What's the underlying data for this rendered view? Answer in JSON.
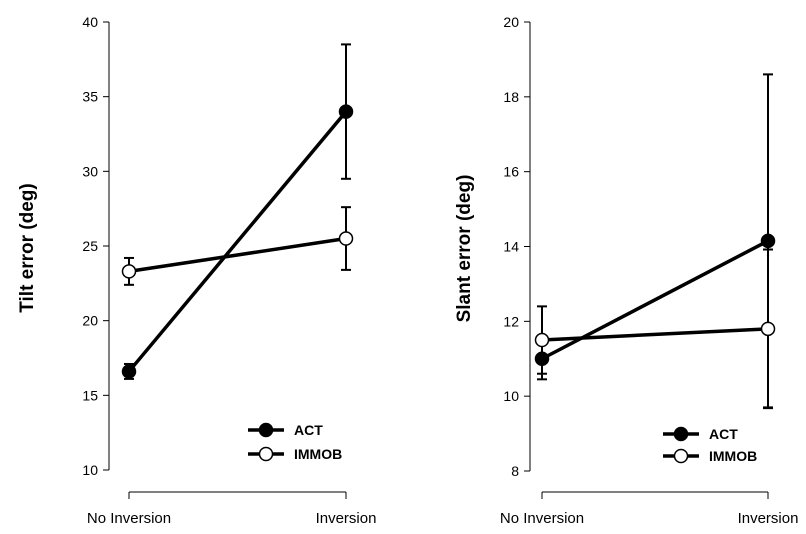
{
  "chart_data": [
    {
      "type": "line",
      "title": "",
      "ylabel": "Tilt error (deg)",
      "xlabel": "",
      "categories": [
        "No Inversion",
        "Inversion"
      ],
      "ylim": [
        10,
        40
      ],
      "yticks": [
        10,
        15,
        20,
        25,
        30,
        35,
        40
      ],
      "legend": "bottom-right",
      "grid": false,
      "series": [
        {
          "name": "ACT",
          "marker": "filled-circle",
          "color": "#000000",
          "values": [
            16.6,
            34.0
          ],
          "error": [
            0.5,
            4.5
          ]
        },
        {
          "name": "IMMOB",
          "marker": "open-circle",
          "color": "#000000",
          "values": [
            23.3,
            25.5
          ],
          "error": [
            0.9,
            2.1
          ]
        }
      ]
    },
    {
      "type": "line",
      "title": "",
      "ylabel": "Slant error (deg)",
      "xlabel": "",
      "categories": [
        "No Inversion",
        "Inversion"
      ],
      "ylim": [
        8,
        20
      ],
      "yticks": [
        8,
        10,
        12,
        14,
        16,
        18,
        20
      ],
      "legend": "bottom-right",
      "grid": false,
      "series": [
        {
          "name": "ACT",
          "marker": "filled-circle",
          "color": "#000000",
          "values": [
            11.0,
            14.15
          ],
          "error": [
            0.55,
            4.45
          ]
        },
        {
          "name": "IMMOB",
          "marker": "open-circle",
          "color": "#000000",
          "values": [
            11.5,
            11.8
          ],
          "error": [
            0.9,
            2.12
          ]
        }
      ]
    }
  ]
}
